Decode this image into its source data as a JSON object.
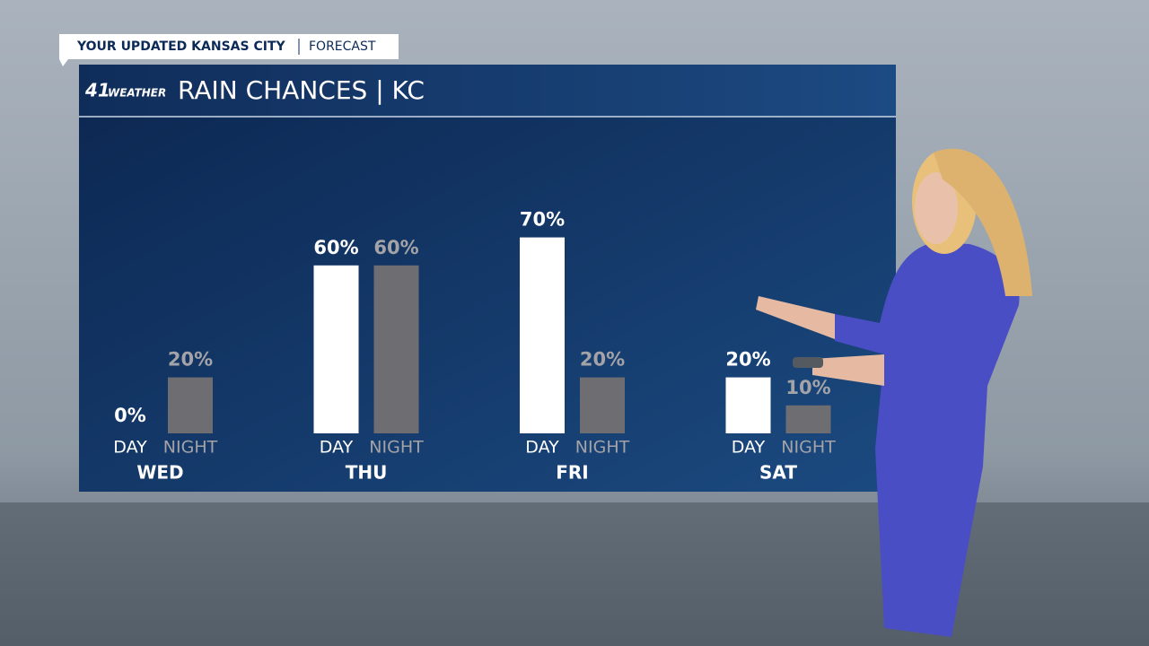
{
  "banner": {
    "left": "YOUR UPDATED KANSAS CITY",
    "right": "FORECAST"
  },
  "logo": {
    "number": "41",
    "text": "WEATHER"
  },
  "chart_data": {
    "type": "bar",
    "title": "RAIN CHANCES | KC",
    "categories": [
      "WED",
      "THU",
      "FRI",
      "SAT"
    ],
    "series": [
      {
        "name": "DAY",
        "color": "#ffffff",
        "values": [
          0,
          60,
          70,
          20
        ],
        "value_labels": [
          "0%",
          "60%",
          "70%",
          "20%"
        ]
      },
      {
        "name": "NIGHT",
        "color": "#6d6d72",
        "values": [
          20,
          60,
          20,
          10
        ],
        "value_labels": [
          "20%",
          "60%",
          "20%",
          "10%"
        ]
      }
    ]
  }
}
